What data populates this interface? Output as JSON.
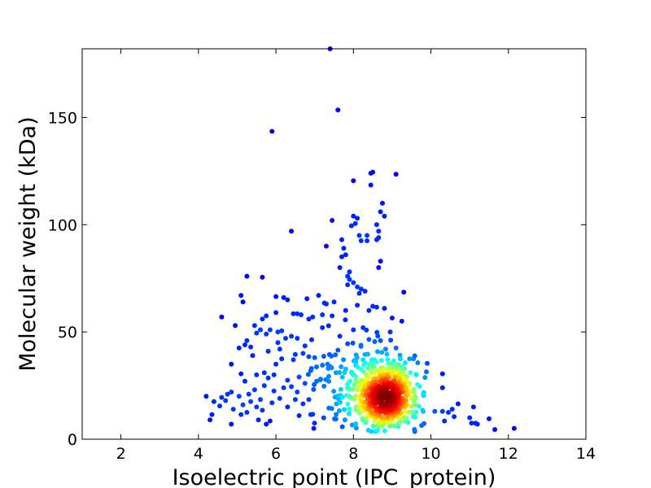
{
  "chart_data": {
    "type": "scatter",
    "title": "",
    "xlabel": "Isoelectric point (IPC_protein)",
    "ylabel": "Molecular weight (kDa)",
    "xlim": [
      1,
      14
    ],
    "ylim": [
      0,
      182
    ],
    "xticks": [
      2,
      4,
      6,
      8,
      10,
      12,
      14
    ],
    "yticks": [
      0,
      50,
      100,
      150
    ],
    "grid": false,
    "legend": "none",
    "colormap": "jet (point density)",
    "point_color_low": "#0000cc",
    "point_color_high": "#8b0000",
    "density_center": {
      "x": 8.85,
      "y": 20
    },
    "points": [
      [
        7.4,
        182
      ],
      [
        7.6,
        153.5
      ],
      [
        5.9,
        143.5
      ],
      [
        8.5,
        124.5
      ],
      [
        8.45,
        124
      ],
      [
        9.1,
        123.5
      ],
      [
        8.0,
        120.5
      ],
      [
        8.45,
        118.5
      ],
      [
        8.75,
        110
      ],
      [
        8.7,
        106
      ],
      [
        8.8,
        104
      ],
      [
        8.0,
        104
      ],
      [
        8.1,
        103
      ],
      [
        7.45,
        102
      ],
      [
        8.05,
        100.5
      ],
      [
        8.6,
        100
      ],
      [
        7.95,
        99.5
      ],
      [
        6.4,
        97
      ],
      [
        8.65,
        97
      ],
      [
        8.15,
        95
      ],
      [
        8.35,
        95
      ],
      [
        8.65,
        94
      ],
      [
        8.6,
        93
      ],
      [
        7.7,
        93
      ],
      [
        8.2,
        92.5
      ],
      [
        8.35,
        92.5
      ],
      [
        7.3,
        90
      ],
      [
        7.75,
        89
      ],
      [
        7.8,
        86
      ],
      [
        7.7,
        85
      ],
      [
        8.7,
        83
      ],
      [
        7.65,
        80
      ],
      [
        8.65,
        80
      ],
      [
        7.9,
        78
      ],
      [
        7.85,
        76
      ],
      [
        5.25,
        76
      ],
      [
        5.65,
        75.5
      ],
      [
        7.9,
        74.5
      ],
      [
        8.0,
        73
      ],
      [
        7.85,
        72
      ],
      [
        8.1,
        71
      ],
      [
        8.2,
        70
      ],
      [
        8.3,
        69
      ],
      [
        9.3,
        68.5
      ],
      [
        8.15,
        68
      ],
      [
        7.1,
        67
      ],
      [
        5.1,
        67
      ],
      [
        6.0,
        66.5
      ],
      [
        6.2,
        66
      ],
      [
        6.3,
        65
      ],
      [
        6.8,
        65.5
      ],
      [
        5.15,
        64
      ],
      [
        7.5,
        64
      ],
      [
        7.3,
        63
      ],
      [
        8.1,
        62.5
      ],
      [
        8.5,
        62
      ],
      [
        8.6,
        61.5
      ],
      [
        8.8,
        61
      ],
      [
        7.8,
        60
      ],
      [
        8.4,
        60
      ],
      [
        6.0,
        59
      ],
      [
        6.45,
        58.5
      ],
      [
        6.55,
        58.5
      ],
      [
        7.2,
        58
      ],
      [
        6.65,
        58
      ],
      [
        5.75,
        57.5
      ],
      [
        7.45,
        57.5
      ],
      [
        6.95,
        57
      ],
      [
        9.0,
        56.5
      ],
      [
        4.6,
        57
      ],
      [
        6.85,
        56
      ],
      [
        5.65,
        56
      ],
      [
        9.25,
        55
      ],
      [
        4.95,
        53
      ],
      [
        7.2,
        52
      ],
      [
        8.25,
        52
      ],
      [
        8.0,
        51
      ],
      [
        5.6,
        51
      ],
      [
        5.85,
        51
      ],
      [
        6.05,
        50
      ],
      [
        6.15,
        50.5
      ],
      [
        5.5,
        49.5
      ],
      [
        5.75,
        49
      ],
      [
        8.95,
        50
      ],
      [
        6.4,
        48
      ],
      [
        7.65,
        48
      ],
      [
        6.25,
        47
      ],
      [
        5.25,
        46
      ],
      [
        8.4,
        46.5
      ],
      [
        8.7,
        46
      ],
      [
        8.55,
        45.5
      ],
      [
        6.05,
        45
      ],
      [
        5.2,
        44
      ],
      [
        7.85,
        44.5
      ],
      [
        6.75,
        43.5
      ],
      [
        5.35,
        43
      ],
      [
        9.1,
        42.5
      ],
      [
        6.1,
        42
      ],
      [
        5.8,
        41
      ],
      [
        7.6,
        41.5
      ],
      [
        6.7,
        40
      ],
      [
        6.5,
        39.5
      ],
      [
        5.4,
        39
      ],
      [
        6.85,
        38.5
      ],
      [
        7.0,
        38
      ],
      [
        6.15,
        37.5
      ],
      [
        6.45,
        37
      ],
      [
        8.25,
        37
      ],
      [
        4.85,
        35
      ],
      [
        9.45,
        37.5
      ],
      [
        9.55,
        37.5
      ],
      [
        6.0,
        35
      ],
      [
        7.2,
        34.5
      ],
      [
        7.35,
        33
      ],
      [
        6.9,
        32
      ],
      [
        5.7,
        31
      ],
      [
        5.1,
        30.5
      ],
      [
        5.5,
        30
      ],
      [
        5.95,
        30
      ],
      [
        6.6,
        29
      ],
      [
        10.3,
        30.5
      ],
      [
        5.8,
        28.5
      ],
      [
        6.3,
        27.5
      ],
      [
        5.2,
        27
      ],
      [
        7.05,
        27
      ],
      [
        6.75,
        26
      ],
      [
        5.7,
        25
      ],
      [
        10.3,
        24
      ],
      [
        6.2,
        24
      ],
      [
        5.45,
        23
      ],
      [
        5.95,
        22.5
      ],
      [
        6.55,
        22
      ],
      [
        4.85,
        22
      ],
      [
        4.75,
        21
      ],
      [
        5.05,
        20
      ],
      [
        5.3,
        21
      ],
      [
        4.2,
        20
      ],
      [
        4.6,
        19.5
      ],
      [
        6.1,
        19
      ],
      [
        5.6,
        18.5
      ],
      [
        6.5,
        18.5
      ],
      [
        6.85,
        18.5
      ],
      [
        4.7,
        18
      ],
      [
        5.35,
        17.5
      ],
      [
        4.4,
        17.5
      ],
      [
        5.9,
        17
      ],
      [
        6.7,
        16.5
      ],
      [
        10.7,
        16.5
      ],
      [
        5.15,
        16
      ],
      [
        11.1,
        15
      ],
      [
        5.5,
        15
      ],
      [
        6.3,
        15
      ],
      [
        10.55,
        14
      ],
      [
        4.9,
        14
      ],
      [
        5.65,
        13.5
      ],
      [
        10.3,
        13
      ],
      [
        10.1,
        13
      ],
      [
        10.45,
        12.5
      ],
      [
        4.35,
        11.5
      ],
      [
        5.1,
        11.5
      ],
      [
        6.9,
        11.5
      ],
      [
        6.6,
        11
      ],
      [
        10.6,
        10.5
      ],
      [
        11.0,
        10
      ],
      [
        11.5,
        9.5
      ],
      [
        4.3,
        9
      ],
      [
        5.55,
        9
      ],
      [
        5.85,
        8.5
      ],
      [
        10.35,
        8.5
      ],
      [
        11.05,
        7.5
      ],
      [
        11.2,
        7
      ],
      [
        11.15,
        7.5
      ],
      [
        4.85,
        7
      ],
      [
        12.15,
        5
      ],
      [
        11.65,
        4.5
      ],
      [
        5.75,
        7
      ],
      [
        7.25,
        63.5
      ],
      [
        5.45,
        53
      ],
      [
        6.55,
        47
      ],
      [
        5.05,
        42.5
      ],
      [
        7.55,
        31
      ],
      [
        6.4,
        24.5
      ],
      [
        5.25,
        12.5
      ],
      [
        4.55,
        15.5
      ]
    ]
  }
}
